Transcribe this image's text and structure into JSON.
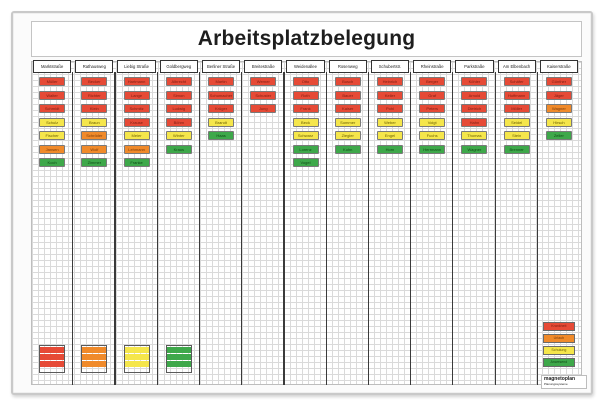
{
  "title": "Arbeitsplatzbelegung",
  "colors": {
    "red": "#e64a36",
    "orange": "#f08a2a",
    "yellow": "#f5e64b",
    "green": "#3ea84a"
  },
  "columns": [
    {
      "name": "Marktstraße",
      "cards": [
        [
          "red",
          "Müller"
        ],
        [
          "red",
          "Walter"
        ],
        [
          "red",
          "Schmidt"
        ],
        [
          "yellow",
          "Schulz"
        ],
        [
          "yellow",
          "Fischer"
        ],
        [
          "orange",
          "Jansen"
        ],
        [
          "green",
          "Koch"
        ]
      ]
    },
    {
      "name": "Rathausweg",
      "cards": [
        [
          "red",
          "Becker"
        ],
        [
          "red",
          "Richter"
        ],
        [
          "red",
          "Klein"
        ],
        [
          "yellow",
          "Braun"
        ],
        [
          "orange",
          "Schröder"
        ],
        [
          "orange",
          "Wolf"
        ],
        [
          "green",
          "Zimmer"
        ]
      ]
    },
    {
      "name": "Liebig Straße",
      "cards": [
        [
          "red",
          "Hartmann"
        ],
        [
          "red",
          "Lange"
        ],
        [
          "red",
          "Schmitz"
        ],
        [
          "red",
          "Krause"
        ],
        [
          "yellow",
          "Meier"
        ],
        [
          "orange",
          "Lehmann"
        ],
        [
          "green",
          "Franke"
        ]
      ]
    },
    {
      "name": "Goldbergweg",
      "cards": [
        [
          "red",
          "Albrecht"
        ],
        [
          "red",
          "Simon"
        ],
        [
          "red",
          "Ludwig"
        ],
        [
          "red",
          "Böhm"
        ],
        [
          "yellow",
          "Winter"
        ],
        [
          "green",
          "Kraus"
        ]
      ]
    },
    {
      "name": "Berliner Straße",
      "cards": [
        [
          "red",
          "Martin"
        ],
        [
          "red",
          "Schumacher"
        ],
        [
          "red",
          "Krüger"
        ],
        [
          "yellow",
          "Brandt"
        ],
        [
          "green",
          "Haas"
        ]
      ]
    },
    {
      "name": "Breitestraße",
      "cards": [
        [
          "red",
          "Werner"
        ],
        [
          "red",
          "Schuster"
        ],
        [
          "red",
          "Jung"
        ]
      ]
    },
    {
      "name": "Weidenallee",
      "cards": [
        [
          "red",
          "Otto"
        ],
        [
          "red",
          "Roth"
        ],
        [
          "red",
          "Frank"
        ],
        [
          "yellow",
          "Beck"
        ],
        [
          "yellow",
          "Schwarz"
        ],
        [
          "green",
          "Lorenz"
        ],
        [
          "green",
          "Vogel"
        ]
      ]
    },
    {
      "name": "Rosenweg",
      "cards": [
        [
          "red",
          "Busch"
        ],
        [
          "red",
          "Bauer"
        ],
        [
          "red",
          "Kaiser"
        ],
        [
          "yellow",
          "Sommer"
        ],
        [
          "yellow",
          "Ziegler"
        ],
        [
          "green",
          "Kuhn"
        ]
      ]
    },
    {
      "name": "Schubertstr.",
      "cards": [
        [
          "red",
          "Heinrich"
        ],
        [
          "red",
          "Keller"
        ],
        [
          "red",
          "Pohl"
        ],
        [
          "yellow",
          "Weber"
        ],
        [
          "yellow",
          "Engel"
        ],
        [
          "green",
          "Horn"
        ]
      ]
    },
    {
      "name": "Rheinstraße",
      "cards": [
        [
          "red",
          "Berger"
        ],
        [
          "red",
          "Graf"
        ],
        [
          "red",
          "Peters"
        ],
        [
          "yellow",
          "Voigt"
        ],
        [
          "yellow",
          "Fuchs"
        ],
        [
          "green",
          "Herrmann"
        ]
      ]
    },
    {
      "name": "Parkstraße",
      "cards": [
        [
          "red",
          "Köhler"
        ],
        [
          "red",
          "Arnold"
        ],
        [
          "red",
          "Dietrich"
        ],
        [
          "red",
          "Hahn"
        ],
        [
          "yellow",
          "Thomas"
        ],
        [
          "green",
          "Wagner"
        ]
      ]
    },
    {
      "name": "Am Elbenbach",
      "cards": [
        [
          "red",
          "Schäfer"
        ],
        [
          "red",
          "Hoffmann"
        ],
        [
          "red",
          "Möller"
        ],
        [
          "yellow",
          "Seidel"
        ],
        [
          "yellow",
          "Stein"
        ],
        [
          "green",
          "Brenner"
        ]
      ]
    },
    {
      "name": "Kaiserstraße",
      "cards": [
        [
          "red",
          "Günther"
        ],
        [
          "red",
          "Jäger"
        ],
        [
          "orange",
          "Wagner"
        ],
        [
          "yellow",
          "Hirsch"
        ],
        [
          "green",
          "Zeller"
        ]
      ]
    }
  ],
  "stacks": [
    "red",
    "orange",
    "yellow",
    "green"
  ],
  "legend": [
    [
      "red",
      "Krankheit"
    ],
    [
      "orange",
      "Urlaub"
    ],
    [
      "yellow",
      "Schulung"
    ],
    [
      "green",
      "Anwesend"
    ]
  ],
  "logo": {
    "name": "magnetoplan",
    "sub": "Planungssysteme"
  }
}
